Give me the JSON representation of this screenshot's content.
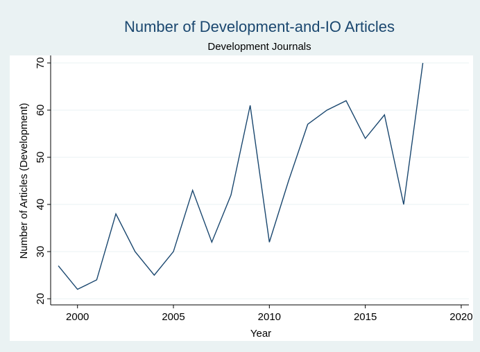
{
  "chart_data": {
    "type": "line",
    "title": "Number of Development-and-IO Articles",
    "subtitle": "Development Journals",
    "x_label": "Year",
    "y_label": "Number of Articles (Development)",
    "x": [
      1999,
      2000,
      2001,
      2002,
      2003,
      2004,
      2005,
      2006,
      2007,
      2008,
      2009,
      2010,
      2011,
      2012,
      2013,
      2014,
      2015,
      2016,
      2017,
      2018
    ],
    "series": [
      {
        "name": "Development",
        "color": "#1a476f",
        "values": [
          27,
          22,
          24,
          38,
          30,
          25,
          30,
          43,
          32,
          42,
          61,
          32,
          45,
          57,
          60,
          62,
          54,
          59,
          40,
          70
        ]
      }
    ],
    "xlim": [
      1998.6,
      2020.4
    ],
    "xticks": [
      2000,
      2005,
      2010,
      2015,
      2020
    ],
    "ylim": [
      18.7,
      71.6
    ],
    "yticks": [
      20,
      30,
      40,
      50,
      60,
      70
    ],
    "grid": true
  }
}
